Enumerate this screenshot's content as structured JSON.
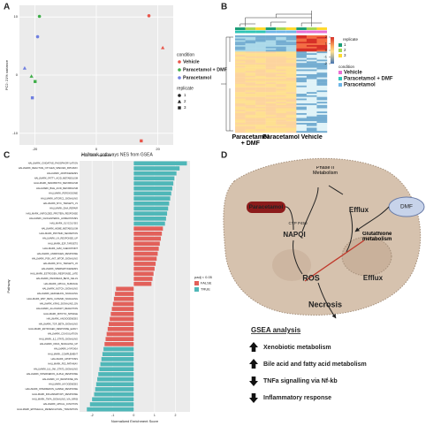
{
  "panels": {
    "a": "A",
    "b": "B",
    "c": "C",
    "d": "D"
  },
  "chart_data": [
    {
      "type": "scatter",
      "x_label": "PC1: 50% variance",
      "y_label": "PC2: 21% variance",
      "xlim": [
        -25,
        25
      ],
      "xticks": [
        -20,
        0,
        20
      ],
      "ylim": [
        -12,
        12
      ],
      "yticks": [
        -10,
        0,
        10
      ],
      "legend_title": "condition",
      "replicate_title": "replicate",
      "replicates": [
        "1",
        "2",
        "3"
      ],
      "series": [
        {
          "name": "Vehicle",
          "color": "#e8564b",
          "x": [
            17.1,
            21.6,
            14.6
          ],
          "y": [
            10.2,
            4.7,
            -11.3
          ]
        },
        {
          "name": "Paracetamol + DMF",
          "color": "#3fae49",
          "x": [
            -18.5,
            -21.1,
            -19.9
          ],
          "y": [
            10.1,
            -0.2,
            -1.1
          ]
        },
        {
          "name": "Paracetamol",
          "color": "#6f7fe0",
          "x": [
            -19.1,
            -23.3,
            -20.8
          ],
          "y": [
            6.6,
            1.2,
            -3.9
          ]
        }
      ]
    },
    {
      "type": "bar",
      "title": "Hallmark pathways NES from GSEA",
      "x_label": "Normalized Enrichment Score",
      "y_label": "Pathway",
      "legend_title": "padj < 0.05",
      "xlim": [
        -2.6,
        2.7
      ],
      "xticks": [
        -2,
        -1,
        0,
        1,
        2
      ],
      "categories": [
        "HALLMARK_OXIDATIVE_PHOSPHORYLATION",
        "HALLMARK_REACTIVE_OXYGEN_SPECIES_PATHWAY",
        "HALLMARK_ADIPOGENESIS",
        "HALLMARK_FATTY_ACID_METABOLISM",
        "HALLMARK_XENOBIOTIC_METABOLISM",
        "HALLMARK_BILE_ACID_METABOLISM",
        "HALLMARK_PEROXISOME",
        "HALLMARK_MTORC1_SIGNALING",
        "HALLMARK_MYC_TARGETS_V1",
        "HALLMARK_DNA_REPAIR",
        "HALLMARK_UNFOLDED_PROTEIN_RESPONSE",
        "HALLMARK_CHOLESTEROL_HOMEOSTASIS",
        "HALLMARK_GLYCOLYSIS",
        "HALLMARK_HEME_METABOLISM",
        "HALLMARK_PROTEIN_SECRETION",
        "HALLMARK_UV_RESPONSE_UP",
        "HALLMARK_E2F_TARGETS",
        "HALLMARK_G2M_CHECKPOINT",
        "HALLMARK_ANDROGEN_RESPONSE",
        "HALLMARK_PI3K_AKT_MTOR_SIGNALING",
        "HALLMARK_MYC_TARGETS_V2",
        "HALLMARK_SPERMATOGENESIS",
        "HALLMARK_ESTROGEN_RESPONSE_LATE",
        "HALLMARK_PANCREAS_BETA_CELLS",
        "HALLMARK_APICAL_SURFACE",
        "HALLMARK_NOTCH_SIGNALING",
        "HALLMARK_HEDGEHOG_SIGNALING",
        "HALLMARK_WNT_BETA_CATENIN_SIGNALING",
        "HALLMARK_KRAS_SIGNALING_DN",
        "HALLMARK_ALLOGRAFT_REJECTION",
        "HALLMARK_MITOTIC_SPINDLE",
        "HALLMARK_ANGIOGENESIS",
        "HALLMARK_TGF_BETA_SIGNALING",
        "HALLMARK_ESTROGEN_RESPONSE_EARLY",
        "HALLMARK_COAGULATION",
        "HALLMARK_IL2_STAT5_SIGNALING",
        "HALLMARK_KRAS_SIGNALING_UP",
        "HALLMARK_HYPOXIA",
        "HALLMARK_COMPLEMENT",
        "HALLMARK_APOPTOSIS",
        "HALLMARK_P53_PATHWAY",
        "HALLMARK_IL6_JAK_STAT3_SIGNALING",
        "HALLMARK_INTERFERON_ALPHA_RESPONSE",
        "HALLMARK_UV_RESPONSE_DN",
        "HALLMARK_MYOGENESIS",
        "HALLMARK_INTERFERON_GAMMA_RESPONSE",
        "HALLMARK_INFLAMMATORY_RESPONSE",
        "HALLMARK_TNFA_SIGNALING_VIA_NFKB",
        "HALLMARK_APICAL_JUNCTION",
        "HALLMARK_EPITHELIAL_MESENCHYMAL_TRANSITION"
      ],
      "series": [
        {
          "name": "FALSE",
          "color": "#e2605a",
          "values": [
            null,
            null,
            null,
            null,
            null,
            null,
            null,
            null,
            null,
            null,
            null,
            null,
            null,
            1.4,
            1.35,
            1.3,
            1.25,
            1.2,
            1.15,
            1.1,
            1.05,
            1.0,
            0.95,
            0.9,
            0.85,
            -0.85,
            -0.9,
            -0.95,
            -1.0,
            -1.05,
            -1.1,
            -1.15,
            -1.2,
            -1.25,
            -1.3,
            -1.35,
            -1.4,
            null,
            null,
            null,
            null,
            null,
            null,
            null,
            null,
            null,
            null,
            null,
            null,
            null
          ]
        },
        {
          "name": "TRUE",
          "color": "#4fb7b8",
          "values": [
            2.55,
            2.2,
            2.05,
            1.95,
            1.9,
            1.85,
            1.8,
            1.75,
            1.7,
            1.65,
            1.6,
            1.55,
            1.5,
            null,
            null,
            null,
            null,
            null,
            null,
            null,
            null,
            null,
            null,
            null,
            null,
            null,
            null,
            null,
            null,
            null,
            null,
            null,
            null,
            null,
            null,
            null,
            null,
            -1.45,
            -1.5,
            -1.55,
            -1.6,
            -1.65,
            -1.7,
            -1.75,
            -1.8,
            -1.85,
            -1.9,
            -2.0,
            -2.1,
            -2.25
          ]
        }
      ]
    }
  ],
  "heatmap": {
    "replicate_title": "replicate",
    "replicates": [
      "1",
      "2",
      "3"
    ],
    "condition_title": "condition",
    "conditions": [
      "Vehicle",
      "Paracetamol + DMF",
      "Paracetamol"
    ],
    "scale_ticks": [
      2,
      1,
      0,
      -1,
      -2
    ],
    "columns": [
      "Paracetamol + DMF",
      "Paracetamol",
      "Vehicle"
    ]
  },
  "diagram": {
    "phase2": "Phase II Metabolism",
    "efflux_top": "Efflux",
    "paracetamol": "Paracetamol",
    "cyp": "CYP P450",
    "napqi": "NAPQI",
    "dmf": "DMF",
    "glutathione": "Glutathione metabolism",
    "ros": "ROS",
    "efflux_bottom": "Efflux",
    "necrosis": "Necrosis",
    "gsea_title": "GSEA analysis",
    "gsea_items": [
      "Xenobiotic metabolism",
      "Bile acid and fatty acid metabolism",
      "TNFa signalling via Nf-kb",
      "Inflammatory response"
    ]
  }
}
